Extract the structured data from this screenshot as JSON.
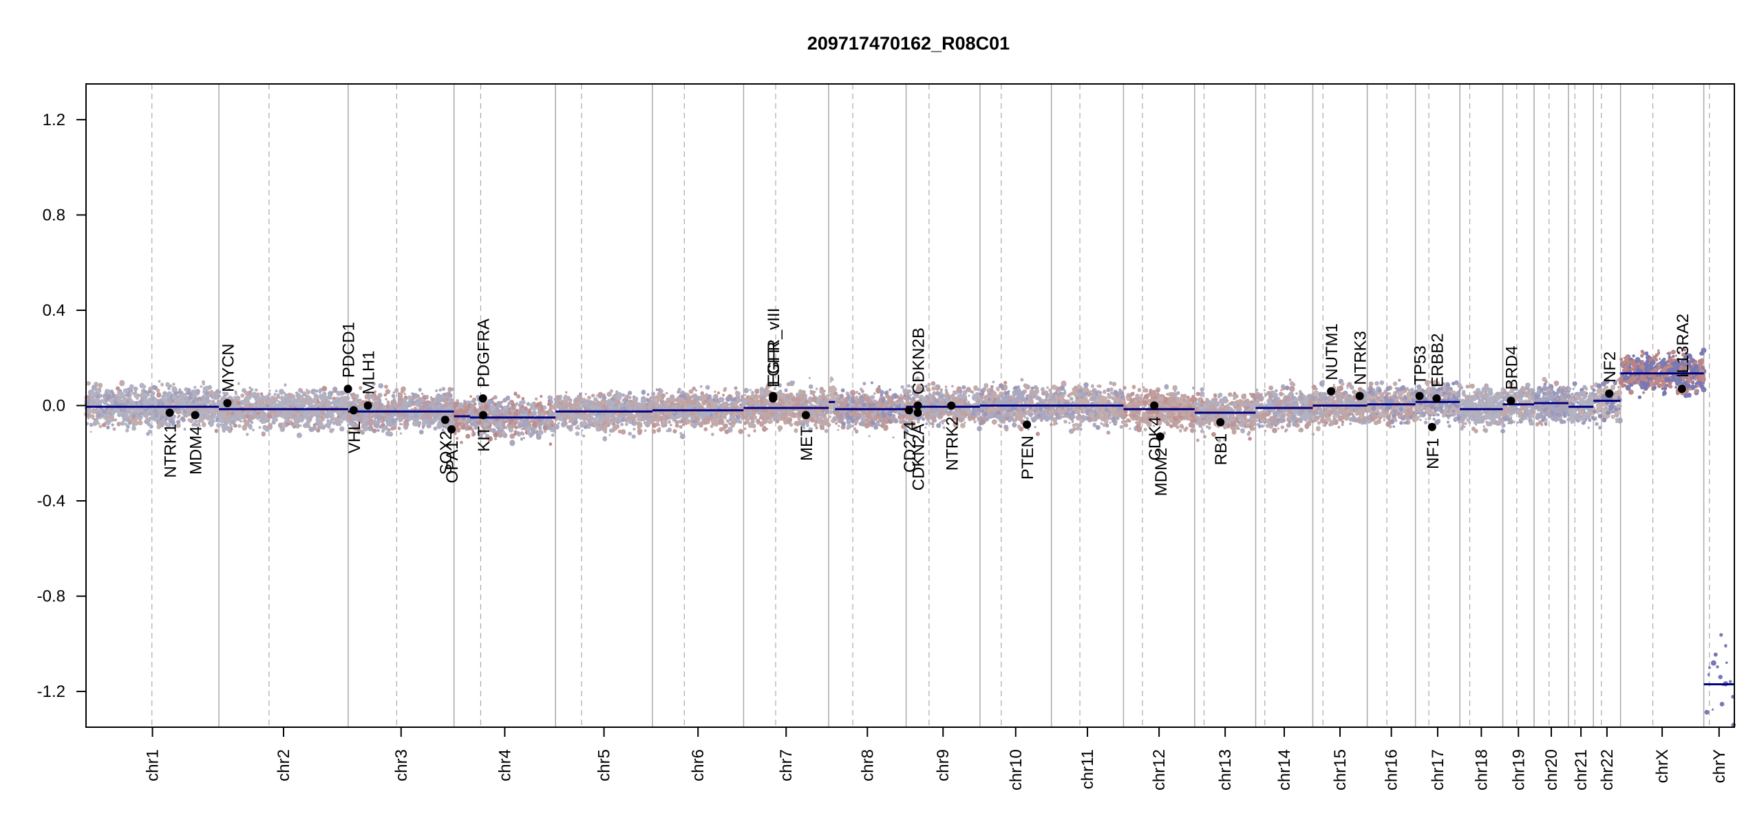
{
  "chart_data": {
    "type": "scatter",
    "title": "209717470162_R08C01",
    "xlabel": "",
    "ylabel": "",
    "ylim": [
      -1.35,
      1.35
    ],
    "y_ticks": [
      -1.2,
      -0.8,
      -0.4,
      0.0,
      0.4,
      0.8,
      1.2
    ],
    "y_tick_labels": [
      "-1.2",
      "-0.8",
      "-0.4",
      "0.0",
      "0.4",
      "0.8",
      "1.2"
    ],
    "grid": "chromosome boundary and centromere vertical lines",
    "colors": {
      "gain": "#7f7fb7",
      "neutral": "#c8c8c8",
      "loss": "#b97f7f",
      "segment": "#000080",
      "gene_marker": "#000000",
      "boundary": "#a9a9a9"
    },
    "chromosomes": [
      {
        "name": "chr1",
        "len": 248.96,
        "cen": 123.4
      },
      {
        "name": "chr2",
        "len": 242.19,
        "cen": 93.9
      },
      {
        "name": "chr3",
        "len": 198.3,
        "cen": 90.9
      },
      {
        "name": "chr4",
        "len": 190.21,
        "cen": 50.0
      },
      {
        "name": "chr5",
        "len": 181.54,
        "cen": 48.8
      },
      {
        "name": "chr6",
        "len": 170.81,
        "cen": 59.8
      },
      {
        "name": "chr7",
        "len": 159.35,
        "cen": 60.1
      },
      {
        "name": "chr8",
        "len": 145.14,
        "cen": 45.2
      },
      {
        "name": "chr9",
        "len": 138.39,
        "cen": 43.0
      },
      {
        "name": "chr10",
        "len": 133.8,
        "cen": 39.8
      },
      {
        "name": "chr11",
        "len": 135.09,
        "cen": 53.4
      },
      {
        "name": "chr12",
        "len": 133.28,
        "cen": 35.5
      },
      {
        "name": "chr13",
        "len": 114.36,
        "cen": 17.7
      },
      {
        "name": "chr14",
        "len": 107.04,
        "cen": 17.2
      },
      {
        "name": "chr15",
        "len": 101.99,
        "cen": 19.0
      },
      {
        "name": "chr16",
        "len": 90.34,
        "cen": 36.8
      },
      {
        "name": "chr17",
        "len": 83.26,
        "cen": 25.1
      },
      {
        "name": "chr18",
        "len": 80.37,
        "cen": 18.5
      },
      {
        "name": "chr19",
        "len": 58.62,
        "cen": 26.2
      },
      {
        "name": "chr20",
        "len": 64.44,
        "cen": 28.1
      },
      {
        "name": "chr21",
        "len": 46.71,
        "cen": 12.0
      },
      {
        "name": "chr22",
        "len": 50.82,
        "cen": 15.0
      },
      {
        "name": "chrX",
        "len": 156.04,
        "cen": 60.6
      },
      {
        "name": "chrY",
        "len": 57.23,
        "cen": 10.4
      }
    ],
    "segments": [
      {
        "chr": "chr1",
        "start": 0,
        "end": 248.96,
        "y": -0.005
      },
      {
        "chr": "chr2",
        "start": 0,
        "end": 242.19,
        "y": -0.015
      },
      {
        "chr": "chr3",
        "start": 0,
        "end": 198.3,
        "y": -0.025
      },
      {
        "chr": "chr4",
        "start": 0,
        "end": 30,
        "y": -0.045
      },
      {
        "chr": "chr4",
        "start": 30,
        "end": 190.21,
        "y": -0.05
      },
      {
        "chr": "chr5",
        "start": 0,
        "end": 181.54,
        "y": -0.025
      },
      {
        "chr": "chr6",
        "start": 0,
        "end": 170.81,
        "y": -0.02
      },
      {
        "chr": "chr7",
        "start": 0,
        "end": 159.35,
        "y": -0.01
      },
      {
        "chr": "chr8",
        "start": 0,
        "end": 12,
        "y": 0.015
      },
      {
        "chr": "chr8",
        "start": 12,
        "end": 145.14,
        "y": -0.015
      },
      {
        "chr": "chr9",
        "start": 0,
        "end": 138.39,
        "y": -0.005
      },
      {
        "chr": "chr10",
        "start": 0,
        "end": 133.8,
        "y": 0.0
      },
      {
        "chr": "chr11",
        "start": 0,
        "end": 135.09,
        "y": 0.0
      },
      {
        "chr": "chr12",
        "start": 0,
        "end": 133.28,
        "y": -0.015
      },
      {
        "chr": "chr13",
        "start": 0,
        "end": 114.36,
        "y": -0.03
      },
      {
        "chr": "chr14",
        "start": 0,
        "end": 107.04,
        "y": -0.01
      },
      {
        "chr": "chr15",
        "start": 0,
        "end": 101.99,
        "y": 0.0
      },
      {
        "chr": "chr16",
        "start": 0,
        "end": 90.34,
        "y": 0.005
      },
      {
        "chr": "chr17",
        "start": 0,
        "end": 83.26,
        "y": 0.015
      },
      {
        "chr": "chr18",
        "start": 0,
        "end": 80.37,
        "y": -0.015
      },
      {
        "chr": "chr19",
        "start": 0,
        "end": 58.62,
        "y": 0.005
      },
      {
        "chr": "chr20",
        "start": 0,
        "end": 64.44,
        "y": 0.01
      },
      {
        "chr": "chr21",
        "start": 0,
        "end": 46.71,
        "y": -0.005
      },
      {
        "chr": "chr22",
        "start": 0,
        "end": 50.82,
        "y": 0.02
      },
      {
        "chr": "chrX",
        "start": 0,
        "end": 156.04,
        "y": 0.135
      },
      {
        "chr": "chrY",
        "start": 0,
        "end": 57.23,
        "y": -1.17
      }
    ],
    "genes": [
      {
        "name": "NTRK1",
        "chr": "chr1",
        "pos": 156.8,
        "y": -0.03,
        "label": "below"
      },
      {
        "name": "MDM4",
        "chr": "chr1",
        "pos": 204.5,
        "y": -0.04,
        "label": "below"
      },
      {
        "name": "MYCN",
        "chr": "chr2",
        "pos": 15.9,
        "y": 0.01,
        "label": "above"
      },
      {
        "name": "PDCD1",
        "chr": "chr2",
        "pos": 241.8,
        "y": 0.07,
        "label": "above"
      },
      {
        "name": "VHL",
        "chr": "chr3",
        "pos": 10.2,
        "y": -0.02,
        "label": "below"
      },
      {
        "name": "MLH1",
        "chr": "chr3",
        "pos": 37.0,
        "y": 0.0,
        "label": "above"
      },
      {
        "name": "SOX2",
        "chr": "chr3",
        "pos": 181.7,
        "y": -0.06,
        "label": "below"
      },
      {
        "name": "OPA1",
        "chr": "chr3",
        "pos": 193.6,
        "y": -0.1,
        "label": "below"
      },
      {
        "name": "PDGFRA",
        "chr": "chr4",
        "pos": 54.2,
        "y": 0.03,
        "label": "above"
      },
      {
        "name": "KIT",
        "chr": "chr4",
        "pos": 54.7,
        "y": -0.04,
        "label": "below"
      },
      {
        "name": "EGFR",
        "chr": "chr7",
        "pos": 55.1,
        "y": 0.03,
        "label": "above"
      },
      {
        "name": "EGFR_vIII",
        "chr": "chr7",
        "pos": 55.2,
        "y": 0.04,
        "label": "above"
      },
      {
        "name": "MET",
        "chr": "chr7",
        "pos": 116.7,
        "y": -0.04,
        "label": "below"
      },
      {
        "name": "CDKN2A",
        "chr": "chr9",
        "pos": 21.97,
        "y": -0.03,
        "label": "below"
      },
      {
        "name": "CD274",
        "chr": "chr9",
        "pos": 5.45,
        "y": -0.02,
        "label": "below"
      },
      {
        "name": "CDKN2B",
        "chr": "chr9",
        "pos": 22.0,
        "y": 0.0,
        "label": "above"
      },
      {
        "name": "NTRK2",
        "chr": "chr9",
        "pos": 84.7,
        "y": 0.0,
        "label": "below"
      },
      {
        "name": "PTEN",
        "chr": "chr10",
        "pos": 87.9,
        "y": -0.08,
        "label": "below"
      },
      {
        "name": "CDK4",
        "chr": "chr12",
        "pos": 57.7,
        "y": 0.0,
        "label": "below"
      },
      {
        "name": "MDM2",
        "chr": "chr12",
        "pos": 68.8,
        "y": -0.13,
        "label": "below"
      },
      {
        "name": "RB1",
        "chr": "chr13",
        "pos": 48.3,
        "y": -0.07,
        "label": "below"
      },
      {
        "name": "NUTM1",
        "chr": "chr15",
        "pos": 34.3,
        "y": 0.06,
        "label": "above"
      },
      {
        "name": "NTRK3",
        "chr": "chr15",
        "pos": 87.9,
        "y": 0.04,
        "label": "above"
      },
      {
        "name": "TP53",
        "chr": "chr17",
        "pos": 7.7,
        "y": 0.04,
        "label": "above"
      },
      {
        "name": "NF1",
        "chr": "chr17",
        "pos": 31.1,
        "y": -0.09,
        "label": "below"
      },
      {
        "name": "ERBB2",
        "chr": "chr17",
        "pos": 39.7,
        "y": 0.03,
        "label": "above"
      },
      {
        "name": "BRD4",
        "chr": "chr19",
        "pos": 15.3,
        "y": 0.02,
        "label": "above"
      },
      {
        "name": "NF2",
        "chr": "chr22",
        "pos": 29.6,
        "y": 0.05,
        "label": "above"
      },
      {
        "name": "IL13RA2",
        "chr": "chrX",
        "pos": 115.0,
        "y": 0.07,
        "label": "above"
      }
    ]
  }
}
